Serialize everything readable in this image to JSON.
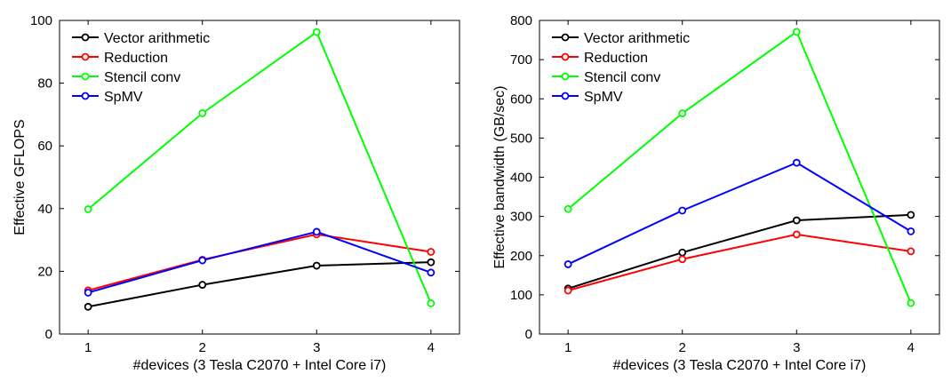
{
  "chart_data": [
    {
      "type": "line",
      "xlabel": "#devices (3 Tesla C2070 + Intel Core i7)",
      "ylabel": "Effective GFLOPS",
      "x": [
        1,
        2,
        3,
        4
      ],
      "xlim": [
        0.75,
        4.25
      ],
      "ylim": [
        0,
        100
      ],
      "xticks": [
        1,
        2,
        3,
        4
      ],
      "yticks": [
        0,
        20,
        40,
        60,
        80,
        100
      ],
      "grid": false,
      "legend_position": "top-left",
      "series": [
        {
          "name": "Vector arithmetic",
          "color": "#000000",
          "values": [
            8.7,
            15.7,
            21.8,
            22.9
          ]
        },
        {
          "name": "Reduction",
          "color": "#ff0000",
          "values": [
            13.9,
            23.7,
            31.8,
            26.2
          ]
        },
        {
          "name": "Stencil conv",
          "color": "#00ff00",
          "values": [
            39.8,
            70.4,
            96.3,
            9.8
          ]
        },
        {
          "name": "SpMV",
          "color": "#0000ff",
          "values": [
            13.2,
            23.5,
            32.6,
            19.6
          ]
        }
      ]
    },
    {
      "type": "line",
      "xlabel": "#devices (3 Tesla C2070 + Intel Core i7)",
      "ylabel": "Effective bandwidth (GB/sec)",
      "x": [
        1,
        2,
        3,
        4
      ],
      "xlim": [
        0.75,
        4.25
      ],
      "ylim": [
        0,
        800
      ],
      "xticks": [
        1,
        2,
        3,
        4
      ],
      "yticks": [
        0,
        100,
        200,
        300,
        400,
        500,
        600,
        700,
        800
      ],
      "grid": false,
      "legend_position": "top-left",
      "series": [
        {
          "name": "Vector arithmetic",
          "color": "#000000",
          "values": [
            116,
            208,
            290,
            304
          ]
        },
        {
          "name": "Reduction",
          "color": "#ff0000",
          "values": [
            111,
            191,
            254,
            211
          ]
        },
        {
          "name": "Stencil conv",
          "color": "#00ff00",
          "values": [
            319,
            563,
            771,
            79
          ]
        },
        {
          "name": "SpMV",
          "color": "#0000ff",
          "values": [
            178,
            315,
            437,
            262
          ]
        }
      ]
    }
  ]
}
